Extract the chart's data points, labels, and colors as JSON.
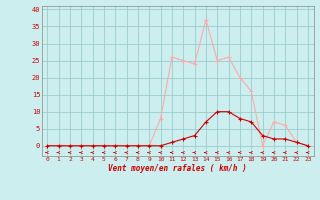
{
  "x": [
    0,
    1,
    2,
    3,
    4,
    5,
    6,
    7,
    8,
    9,
    10,
    11,
    12,
    13,
    14,
    15,
    16,
    17,
    18,
    19,
    20,
    21,
    22,
    23
  ],
  "rafales": [
    0,
    0,
    0,
    0,
    0,
    0,
    0,
    0,
    0,
    0,
    8,
    26,
    25,
    24,
    37,
    25,
    26,
    20,
    16,
    0,
    7,
    6,
    1,
    0
  ],
  "moyen": [
    0,
    0,
    0,
    0,
    0,
    0,
    0,
    0,
    0,
    0,
    0,
    1,
    2,
    3,
    7,
    10,
    10,
    8,
    7,
    3,
    2,
    2,
    1,
    0
  ],
  "bg_color": "#cceeee",
  "grid_color": "#99cccc",
  "line_color_rafales": "#ffaaaa",
  "line_color_moyen": "#cc0000",
  "arrow_color": "#cc0000",
  "xlabel": "Vent moyen/en rafales ( km/h )",
  "yticks": [
    0,
    5,
    10,
    15,
    20,
    25,
    30,
    35,
    40
  ],
  "xticks": [
    0,
    1,
    2,
    3,
    4,
    5,
    6,
    7,
    8,
    9,
    10,
    11,
    12,
    13,
    14,
    15,
    16,
    17,
    18,
    19,
    20,
    21,
    22,
    23
  ],
  "ylim": [
    -3,
    41
  ],
  "xlim": [
    -0.5,
    23.5
  ]
}
